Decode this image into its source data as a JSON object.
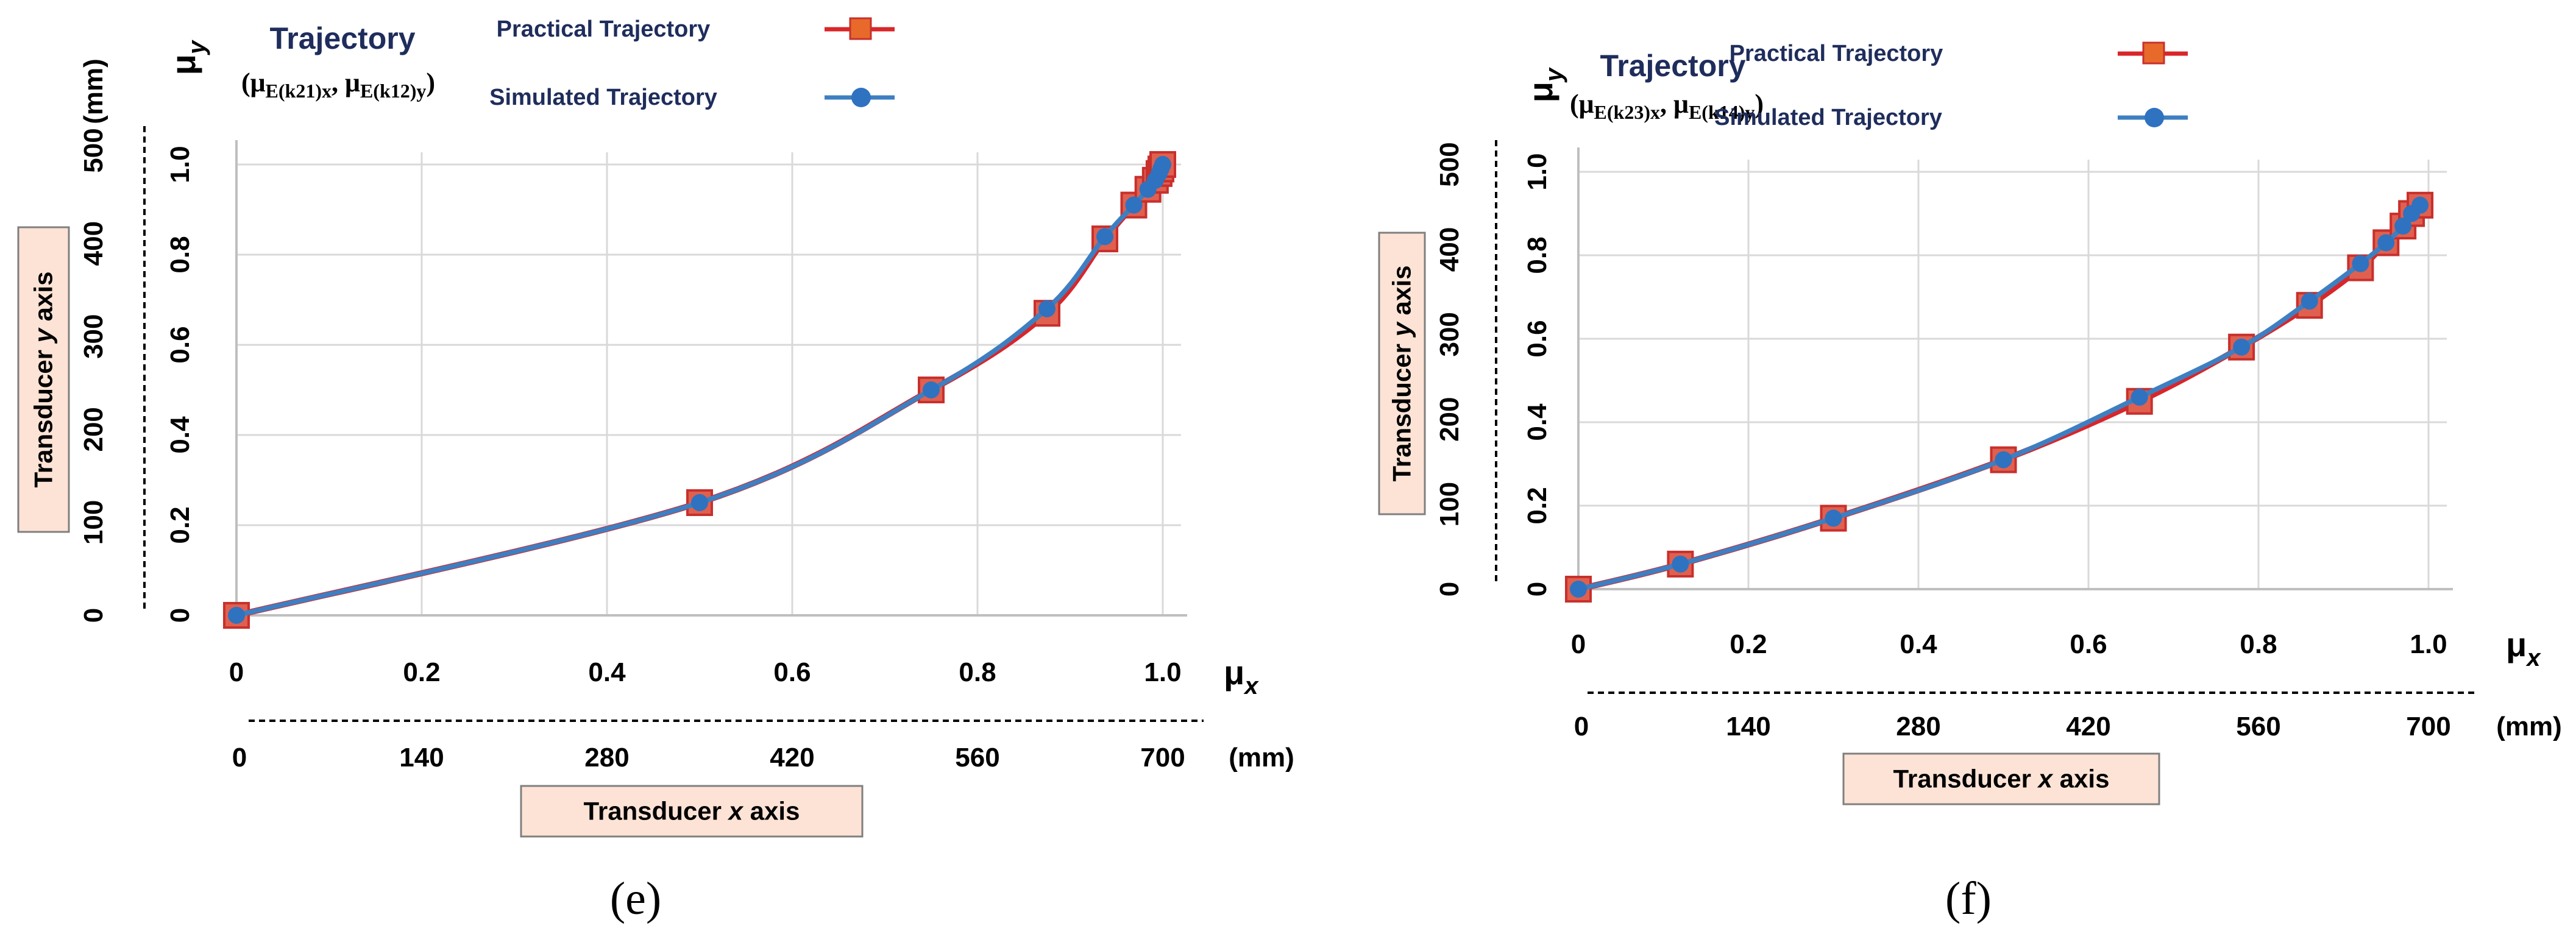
{
  "panels": [
    {
      "panel_label": "(e)",
      "title": "Trajectory",
      "pair_text": "(μE(k21)x, μE(k12)y)",
      "legend": {
        "practical": "Practical Trajectory",
        "simulated": "Simulated Trajectory"
      },
      "mu_x": "μx",
      "mu_y": "μy",
      "mm_label": "(mm)",
      "x_box_label": "Transducer x axis",
      "y_box_label": "Transducer y axis",
      "mu_x_ticks": [
        "0",
        "0.2",
        "0.4",
        "0.6",
        "0.8",
        "1.0"
      ],
      "mu_y_ticks": [
        "0",
        "0.2",
        "0.4",
        "0.6",
        "0.8",
        "1.0"
      ],
      "mm_x_ticks": [
        "0",
        "140",
        "280",
        "420",
        "560",
        "700"
      ],
      "mm_y_ticks": [
        "0",
        "100",
        "200",
        "300",
        "400",
        "500"
      ]
    },
    {
      "panel_label": "(f)",
      "title": "Trajectory",
      "pair_text": "(μE(k23)x, μE(k14)y)",
      "legend": {
        "practical": "Practical Trajectory",
        "simulated": "Simulated Trajectory"
      },
      "mu_x": "μx",
      "mu_y": "μy",
      "mm_label": "(mm)",
      "x_box_label": "Transducer x axis",
      "y_box_label": "Transducer y axis",
      "mu_x_ticks": [
        "0",
        "0.2",
        "0.4",
        "0.6",
        "0.8",
        "1.0"
      ],
      "mu_y_ticks": [
        "0",
        "0.2",
        "0.4",
        "0.6",
        "0.8",
        "1.0"
      ],
      "mm_x_ticks": [
        "0",
        "140",
        "280",
        "420",
        "560",
        "700"
      ],
      "mm_y_ticks": [
        "0",
        "100",
        "200",
        "300",
        "400",
        "500"
      ]
    }
  ],
  "colors": {
    "practical_line": "#d9262a",
    "practical_marker_fill": "#e0604f",
    "practical_marker_edge": "#c8302c",
    "simulated_line": "#3e7fc1",
    "simulated_marker": "#2f72c0",
    "title": "#1f2d5c",
    "grid": "#d9d9d9",
    "box_fill": "#fde3d5"
  },
  "chart_data": [
    {
      "type": "line",
      "title": "Trajectory",
      "xlabel": "μx",
      "ylabel": "μy",
      "xlim": [
        0,
        1.0
      ],
      "ylim": [
        0,
        1.0
      ],
      "grid": true,
      "legend_position": "top",
      "series": [
        {
          "name": "Practical Trajectory",
          "x": [
            0,
            0.5,
            0.75,
            0.875,
            0.9375,
            0.96875,
            0.984,
            0.992,
            0.996,
            0.998,
            1.0
          ],
          "y": [
            0,
            0.25,
            0.5,
            0.67,
            0.835,
            0.91,
            0.945,
            0.965,
            0.98,
            0.99,
            1.0
          ]
        },
        {
          "name": "Simulated Trajectory",
          "x": [
            0,
            0.5,
            0.75,
            0.875,
            0.9375,
            0.96875,
            0.984,
            0.992,
            0.996,
            0.998,
            1.0
          ],
          "y": [
            0,
            0.25,
            0.5,
            0.68,
            0.84,
            0.91,
            0.945,
            0.965,
            0.98,
            0.99,
            1.0
          ]
        }
      ]
    },
    {
      "type": "line",
      "title": "Trajectory",
      "xlabel": "μx",
      "ylabel": "μy",
      "xlim": [
        0,
        1.0
      ],
      "ylim": [
        0,
        1.0
      ],
      "grid": true,
      "legend_position": "top",
      "series": [
        {
          "name": "Practical Trajectory",
          "x": [
            0,
            0.12,
            0.3,
            0.5,
            0.66,
            0.78,
            0.86,
            0.92,
            0.95,
            0.97,
            0.98,
            0.99
          ],
          "y": [
            0,
            0.06,
            0.17,
            0.31,
            0.45,
            0.58,
            0.68,
            0.77,
            0.83,
            0.87,
            0.9,
            0.92
          ]
        },
        {
          "name": "Simulated Trajectory",
          "x": [
            0,
            0.12,
            0.3,
            0.5,
            0.66,
            0.78,
            0.86,
            0.92,
            0.95,
            0.97,
            0.98,
            0.99
          ],
          "y": [
            0,
            0.06,
            0.17,
            0.31,
            0.46,
            0.58,
            0.69,
            0.78,
            0.83,
            0.87,
            0.9,
            0.92
          ]
        }
      ]
    }
  ]
}
